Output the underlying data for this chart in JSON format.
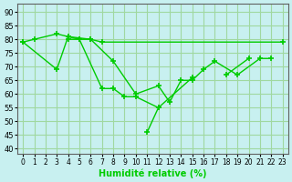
{
  "title": "",
  "xlabel": "Humidité relative (%)",
  "ylabel": "",
  "background_color": "#c8f0f0",
  "grid_color": "#a0d8a0",
  "line_color": "#00cc00",
  "xlim": [
    -0.5,
    23.5
  ],
  "ylim": [
    38,
    93
  ],
  "yticks": [
    40,
    45,
    50,
    55,
    60,
    65,
    70,
    75,
    80,
    85,
    90
  ],
  "xticks": [
    0,
    1,
    2,
    3,
    4,
    5,
    6,
    7,
    8,
    9,
    10,
    11,
    12,
    13,
    14,
    15,
    16,
    17,
    18,
    19,
    20,
    21,
    22,
    23
  ],
  "series": [
    {
      "x": [
        0,
        1,
        3,
        4,
        5,
        6,
        7,
        23
      ],
      "y": [
        79,
        80,
        82,
        81,
        80,
        80,
        79,
        79
      ]
    },
    {
      "x": [
        0,
        3,
        4,
        6,
        8,
        10,
        12,
        13,
        14,
        15,
        16,
        17,
        19,
        21,
        22
      ],
      "y": [
        79,
        69,
        81,
        80,
        72,
        60,
        63,
        57,
        65,
        65,
        69,
        72,
        67,
        73,
        73
      ]
    },
    {
      "x": [
        4,
        5,
        7,
        8,
        9,
        10,
        12,
        15
      ],
      "y": [
        80,
        80,
        62,
        62,
        59,
        59,
        55,
        66
      ]
    },
    {
      "x": [
        11,
        12
      ],
      "y": [
        46,
        55
      ]
    },
    {
      "x": [
        18,
        20
      ],
      "y": [
        67,
        73
      ]
    }
  ]
}
